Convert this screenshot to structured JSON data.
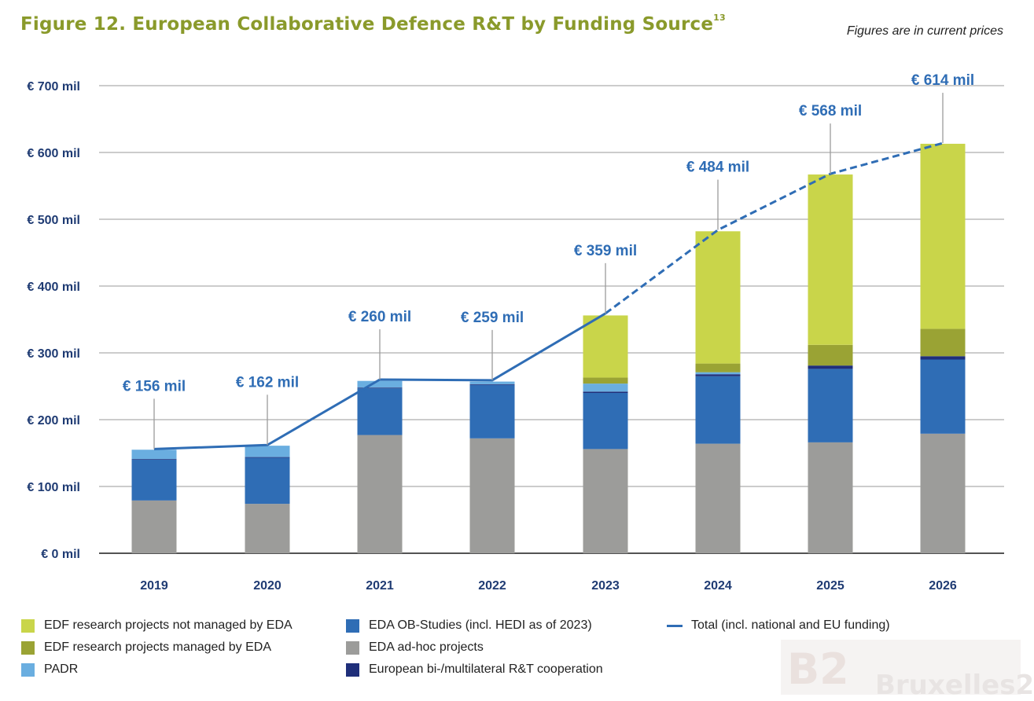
{
  "header": {
    "title": "Figure 12. European Collaborative Defence R&T by Funding Source",
    "title_sup": "13",
    "note": "Figures are in current prices"
  },
  "colors": {
    "edf_not_eda": "#c9d54a",
    "edf_eda": "#9aa334",
    "padr": "#6aaee0",
    "ob_studies": "#2f6db5",
    "ad_hoc": "#9c9c9a",
    "bi_multi": "#1f2f7a",
    "total_line": "#2f6db5",
    "axis_text": "#1f3b73",
    "title": "#8a9a2b"
  },
  "chart_data": {
    "type": "bar",
    "stacked": true,
    "categories": [
      "2019",
      "2020",
      "2021",
      "2022",
      "2023",
      "2024",
      "2025",
      "2026"
    ],
    "ylim": [
      0,
      700
    ],
    "yticks": [
      0,
      100,
      200,
      300,
      400,
      500,
      600,
      700
    ],
    "ytick_labels": [
      "€ 0 mil",
      "€ 100 mil",
      "€ 200 mil",
      "€ 300 mil",
      "€ 400 mil",
      "€ 500 mil",
      "€ 600 mil",
      "€ 700 mil"
    ],
    "grid": true,
    "series": [
      {
        "name": "EDA ad-hoc projects",
        "key": "ad_hoc",
        "values": [
          79,
          74,
          177,
          172,
          156,
          164,
          166,
          179
        ]
      },
      {
        "name": "EDA OB-Studies (incl. HEDI as of 2023)",
        "key": "ob_studies",
        "values": [
          61,
          69,
          70,
          80,
          84,
          101,
          110,
          111
        ]
      },
      {
        "name": "European bi-/multilateral R&T cooperation",
        "key": "bi_multi",
        "values": [
          1,
          1,
          1,
          1,
          2,
          3,
          5,
          5
        ]
      },
      {
        "name": "PADR",
        "key": "padr",
        "values": [
          14,
          17,
          10,
          4,
          12,
          3,
          0,
          0
        ]
      },
      {
        "name": "EDF research projects managed by EDA",
        "key": "edf_eda",
        "values": [
          0,
          0,
          0,
          0,
          9,
          13,
          31,
          41
        ]
      },
      {
        "name": "EDF research projects not managed by EDA",
        "key": "edf_not_eda",
        "values": [
          0,
          0,
          0,
          0,
          93,
          198,
          255,
          277
        ]
      }
    ],
    "total": {
      "name": "Total (incl. national and EU funding)",
      "values": [
        156,
        162,
        260,
        259,
        359,
        484,
        568,
        614
      ],
      "labels": [
        "€ 156 mil",
        "€ 162 mil",
        "€ 260 mil",
        "€ 259 mil",
        "€ 359 mil",
        "€ 484 mil",
        "€ 568 mil",
        "€ 614 mil"
      ],
      "dashed_from_index": 4
    },
    "legend": [
      {
        "label": "EDF research projects not managed by EDA",
        "key": "edf_not_eda",
        "kind": "box"
      },
      {
        "label": "EDF research projects managed by EDA",
        "key": "edf_eda",
        "kind": "box"
      },
      {
        "label": "PADR",
        "key": "padr",
        "kind": "box"
      },
      {
        "label": "EDA OB-Studies (incl. HEDI as of 2023)",
        "key": "ob_studies",
        "kind": "box"
      },
      {
        "label": "EDA ad-hoc projects",
        "key": "ad_hoc",
        "kind": "box"
      },
      {
        "label": "European bi-/multilateral R&T cooperation",
        "key": "bi_multi",
        "kind": "box"
      },
      {
        "label": "Total (incl. national and EU funding)",
        "key": "total_line",
        "kind": "line"
      }
    ]
  },
  "watermark": {
    "logo_text": "B2",
    "text": "Bruxelles2"
  }
}
